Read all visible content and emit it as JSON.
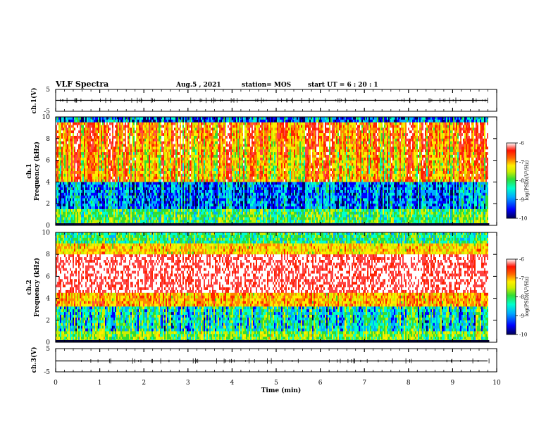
{
  "header": {
    "title": "VLF Spectra",
    "date": "Aug.5 , 2021",
    "station": "station= MOS",
    "start": "start UT =  6 : 20 : 1"
  },
  "chart_data": {
    "type": "heatmap",
    "x_axis": {
      "label": "Time (min)",
      "range": [
        0,
        10
      ],
      "ticks": [
        0,
        1,
        2,
        3,
        4,
        5,
        6,
        7,
        8,
        9,
        10
      ],
      "data_end": 9.83
    },
    "panels": [
      {
        "id": "ch1-waveform",
        "ylabel": "ch.1(V)",
        "ylim": [
          -5,
          5
        ],
        "ticks": [
          "5",
          "-5"
        ],
        "baseline": 0
      },
      {
        "id": "ch1-spectrogram",
        "ylabel_top": "ch.1",
        "ylabel": "Frequency (kHz)",
        "ylim": [
          0,
          10
        ],
        "ticks": [
          "0",
          "2",
          "4",
          "6",
          "8",
          "10"
        ],
        "colorbar": {
          "label": "log(PSD)(V²/Hz)",
          "range": [
            -10,
            -6
          ],
          "ticks": [
            "-6",
            "-7",
            "-8",
            "-9",
            "-10"
          ]
        }
      },
      {
        "id": "ch2-spectrogram",
        "ylabel_top": "ch.2",
        "ylabel": "Frequency (kHz)",
        "ylim": [
          0,
          10
        ],
        "ticks": [
          "0",
          "2",
          "4",
          "6",
          "8",
          "10"
        ],
        "colorbar": {
          "label": "log(PSD)(V²/Hz)",
          "range": [
            -10,
            -6
          ],
          "ticks": [
            "-6",
            "-7",
            "-8",
            "-9",
            "-10"
          ]
        }
      },
      {
        "id": "ch3-waveform",
        "ylabel": "ch.3(V)",
        "ylim": [
          -5,
          5
        ],
        "ticks": [
          "5",
          "-5"
        ],
        "baseline": 0
      }
    ],
    "colormap": [
      "#000066",
      "#0000ff",
      "#00aaff",
      "#00ffcc",
      "#33dd33",
      "#ccee00",
      "#ffee00",
      "#ff8800",
      "#ff2200",
      "#ff4444",
      "#ffffff"
    ],
    "grid": false
  }
}
